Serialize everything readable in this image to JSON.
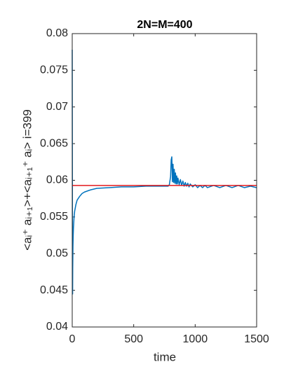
{
  "chart_data": {
    "type": "line",
    "title": "2N=M=400",
    "x_label": "time",
    "y_label": "<aᵢ⁺ aᵢ₊₁>+<aᵢ₊₁⁺ aᵢ> i=399",
    "xlim": [
      0,
      1500
    ],
    "xticks": [
      0,
      500,
      1000,
      1500
    ],
    "ylim": [
      0.04,
      0.08
    ],
    "yticks": [
      0.04,
      0.045,
      0.05,
      0.055,
      0.06,
      0.065,
      0.07,
      0.075,
      0.08
    ],
    "grid": false,
    "series": [
      {
        "color": "#0072bd",
        "x": [
          0,
          1,
          2,
          3,
          4,
          6,
          8,
          10,
          15,
          20,
          30,
          40,
          60,
          80,
          100,
          150,
          200,
          300,
          400,
          500,
          600,
          700,
          780,
          790,
          800,
          805,
          810,
          815,
          820,
          825,
          830,
          835,
          840,
          845,
          850,
          855,
          860,
          870,
          880,
          890,
          900,
          910,
          920,
          930,
          940,
          950,
          960,
          980,
          1000,
          1020,
          1040,
          1060,
          1080,
          1100,
          1150,
          1200,
          1250,
          1300,
          1350,
          1400,
          1450,
          1500
        ],
        "values": [
          0.0778,
          0.065,
          0.05,
          0.0445,
          0.048,
          0.051,
          0.0525,
          0.0535,
          0.055,
          0.0558,
          0.0567,
          0.0573,
          0.0578,
          0.0582,
          0.0584,
          0.0587,
          0.0589,
          0.059,
          0.0591,
          0.0591,
          0.0592,
          0.0592,
          0.0592,
          0.0594,
          0.0605,
          0.0628,
          0.0632,
          0.0598,
          0.0622,
          0.0597,
          0.0615,
          0.0596,
          0.061,
          0.0595,
          0.0606,
          0.0595,
          0.0603,
          0.0594,
          0.0601,
          0.0593,
          0.0599,
          0.0592,
          0.0597,
          0.0592,
          0.0596,
          0.0591,
          0.0595,
          0.0591,
          0.0594,
          0.059,
          0.0593,
          0.059,
          0.0593,
          0.059,
          0.0593,
          0.059,
          0.0593,
          0.059,
          0.0593,
          0.059,
          0.0592,
          0.059
        ]
      },
      {
        "color": "#e3191c",
        "x": [
          0,
          1500
        ],
        "values": [
          0.0593,
          0.0593
        ]
      }
    ]
  }
}
